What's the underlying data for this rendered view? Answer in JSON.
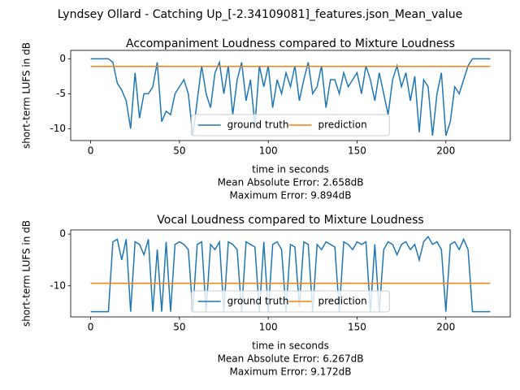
{
  "suptitle": "Lyndsey Ollard - Catching Up_[-2.34109081]_features.json_Mean_value",
  "chart_data": [
    {
      "type": "line",
      "title": "Accompaniment Loudness compared to Mixture Loudness",
      "x_label": "time in seconds",
      "y_label": "short-term LUFS in dB",
      "annotations": [
        "Mean Absolute Error: 2.658dB",
        "Maximum Error: 9.894dB"
      ],
      "xlim": [
        -11.25,
        236.25
      ],
      "ylim": [
        -11.7,
        1.2
      ],
      "xticks": [
        0,
        50,
        100,
        150,
        200
      ],
      "yticks": [
        -10,
        -5,
        0
      ],
      "legend": "lower center",
      "grid": false,
      "series": [
        {
          "name": "ground truth",
          "color": "#1f77b4",
          "x": [
            0,
            2.5,
            5,
            7.5,
            10,
            12.5,
            15,
            17.5,
            20,
            22.5,
            25,
            27.5,
            30,
            32.5,
            35,
            37.5,
            40,
            42.5,
            45,
            47.5,
            50,
            52.5,
            55,
            57.5,
            60,
            62.5,
            65,
            67.5,
            70,
            72.5,
            75,
            77.5,
            80,
            82.5,
            85,
            87.5,
            90,
            92.5,
            95,
            97.5,
            100,
            102.5,
            105,
            107.5,
            110,
            112.5,
            115,
            117.5,
            120,
            122.5,
            125,
            127.5,
            130,
            132.5,
            135,
            137.5,
            140,
            142.5,
            145,
            147.5,
            150,
            152.5,
            155,
            157.5,
            160,
            162.5,
            165,
            167.5,
            170,
            172.5,
            175,
            177.5,
            180,
            182.5,
            185,
            187.5,
            190,
            192.5,
            195,
            197.5,
            200,
            202.5,
            205,
            207.5,
            210,
            212.5,
            215,
            217.5,
            220,
            222.5,
            225
          ],
          "values": [
            0,
            0,
            0,
            0,
            0,
            -0.5,
            -3.5,
            -4.5,
            -6,
            -10,
            -2,
            -8.5,
            -5,
            -5,
            -4,
            -0.5,
            -9,
            -7.5,
            -8,
            -5,
            -4,
            -3,
            -5,
            -11,
            -6,
            -1,
            -5,
            -7,
            -2,
            -0.5,
            -5,
            -1,
            -8,
            -3,
            -0.5,
            -6,
            -3,
            -9.5,
            -1,
            -4,
            -1,
            -7,
            -3,
            -5,
            -2,
            -4,
            -1,
            -6,
            -3,
            -0.5,
            -5,
            -4,
            -1,
            -7,
            -3,
            -3,
            -5,
            -2,
            -4,
            -3,
            -2,
            -5,
            -1,
            -3,
            -6,
            -2,
            -5,
            -8,
            -3,
            -1,
            -4,
            -2,
            -6,
            -2.5,
            -10.5,
            -3,
            -4,
            -11,
            -5,
            -2,
            -11,
            -9,
            -4,
            -5,
            -3,
            -1,
            0,
            0,
            0,
            0,
            0
          ]
        },
        {
          "name": "prediction",
          "color": "#ff7f0e",
          "x": [
            0,
            225
          ],
          "values": [
            -1.1,
            -1.1
          ]
        }
      ]
    },
    {
      "type": "line",
      "title": "Vocal Loudness compared to Mixture Loudness",
      "x_label": "time in seconds",
      "y_label": "short-term LUFS in dB",
      "annotations": [
        "Mean Absolute Error: 6.267dB",
        "Maximum Error: 9.172dB"
      ],
      "xlim": [
        -11.25,
        236.25
      ],
      "ylim": [
        -16,
        0.8
      ],
      "xticks": [
        0,
        50,
        100,
        150,
        200
      ],
      "yticks": [
        -10,
        0
      ],
      "legend": "lower center",
      "grid": false,
      "series": [
        {
          "name": "ground truth",
          "color": "#1f77b4",
          "x": [
            0,
            2.5,
            5,
            7.5,
            10,
            12.5,
            15,
            17.5,
            20,
            22.5,
            25,
            27.5,
            30,
            32.5,
            35,
            37.5,
            40,
            42.5,
            45,
            47.5,
            50,
            52.5,
            55,
            57.5,
            60,
            62.5,
            65,
            67.5,
            70,
            72.5,
            75,
            77.5,
            80,
            82.5,
            85,
            87.5,
            90,
            92.5,
            95,
            97.5,
            100,
            102.5,
            105,
            107.5,
            110,
            112.5,
            115,
            117.5,
            120,
            122.5,
            125,
            127.5,
            130,
            132.5,
            135,
            137.5,
            140,
            142.5,
            145,
            147.5,
            150,
            152.5,
            155,
            157.5,
            160,
            162.5,
            165,
            167.5,
            170,
            172.5,
            175,
            177.5,
            180,
            182.5,
            185,
            187.5,
            190,
            192.5,
            195,
            197.5,
            200,
            202.5,
            205,
            207.5,
            210,
            212.5,
            215,
            217.5,
            220,
            222.5,
            225
          ],
          "values": [
            -15,
            -15,
            -15,
            -15,
            -15,
            -1.5,
            -1,
            -5,
            -1,
            -15,
            -1.5,
            -2,
            -4,
            -1,
            -15,
            -3,
            -15,
            -1.5,
            -15,
            -2,
            -1.5,
            -2,
            -3,
            -15,
            -2,
            -1.5,
            -15,
            -2,
            -3,
            -1.5,
            -15,
            -1.5,
            -2,
            -3,
            -15,
            -1.5,
            -2,
            -2.5,
            -15,
            -1.5,
            -15,
            -2,
            -1.5,
            -3,
            -15,
            -2,
            -2.5,
            -14,
            -1.5,
            -2,
            -15,
            -2,
            -3,
            -1.5,
            -2,
            -2.5,
            -15,
            -1.5,
            -2,
            -3,
            -1.5,
            -2,
            -1.5,
            -15,
            -2,
            -15,
            -3,
            -1.5,
            -2,
            -4,
            -2,
            -1.5,
            -3,
            -2,
            -5,
            -1.5,
            -0.5,
            -2,
            -1.5,
            -3,
            -15,
            -2,
            -1.5,
            -3,
            -1,
            -3,
            -15,
            -15,
            -15,
            -15,
            -15
          ]
        },
        {
          "name": "prediction",
          "color": "#ff7f0e",
          "x": [
            0,
            225
          ],
          "values": [
            -9.5,
            -9.5
          ]
        }
      ]
    }
  ]
}
